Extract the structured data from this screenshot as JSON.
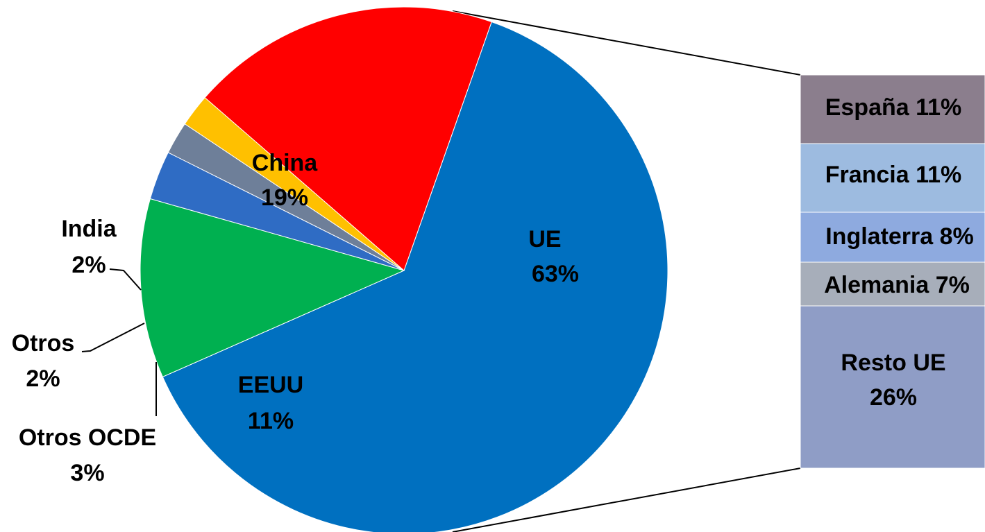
{
  "chart_data": [
    {
      "type": "pie",
      "title": "",
      "slices": [
        {
          "id": "ue",
          "label": "UE",
          "value": 63,
          "value_text": "63%",
          "color": "#0070C0",
          "label_color": "#000000"
        },
        {
          "id": "eeuu",
          "label": "EEUU",
          "value": 11,
          "value_text": "11%",
          "color": "#00B050",
          "label_color": "#000000"
        },
        {
          "id": "otros-ocde",
          "label": "Otros OCDE",
          "value": 3,
          "value_text": "3%",
          "color": "#2F6CC4",
          "label_color": "#000000"
        },
        {
          "id": "otros",
          "label": "Otros",
          "value": 2,
          "value_text": "2%",
          "color": "#6E7F99",
          "label_color": "#000000"
        },
        {
          "id": "india",
          "label": "India",
          "value": 2,
          "value_text": "2%",
          "color": "#FFC000",
          "label_color": "#000000"
        },
        {
          "id": "china",
          "label": "China",
          "value": 19,
          "value_text": "19%",
          "color": "#FF0000",
          "label_color": "#000000"
        }
      ]
    },
    {
      "type": "bar",
      "stacked": true,
      "breakdown_of": "UE",
      "segments": [
        {
          "id": "espana",
          "label": "España 11%",
          "value": 11,
          "color": "#8B7E8D"
        },
        {
          "id": "francia",
          "label": "Francia 11%",
          "value": 11,
          "color": "#9DBBE0"
        },
        {
          "id": "inglaterra",
          "label": "Inglaterra 8%",
          "value": 8,
          "color": "#8EAADF"
        },
        {
          "id": "alemania",
          "label": "Alemania 7%",
          "value": 7,
          "color": "#A7AEBA"
        },
        {
          "id": "resto-ue",
          "label": "Resto UE",
          "sublabel": "26%",
          "value": 26,
          "color": "#8F9DC6"
        }
      ]
    }
  ]
}
